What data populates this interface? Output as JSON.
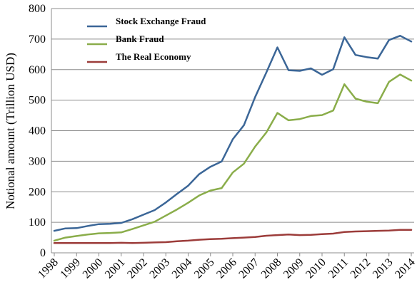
{
  "chart_data": {
    "type": "line",
    "title": "",
    "xlabel": "",
    "ylabel": "Notional amount (Trillion USD)",
    "ylim": [
      0,
      800
    ],
    "yticks": [
      0,
      100,
      200,
      300,
      400,
      500,
      600,
      700,
      800
    ],
    "xlim": [
      1998,
      2014
    ],
    "xticks": [
      1998,
      1999,
      2000,
      2001,
      2002,
      2003,
      2004,
      2005,
      2006,
      2007,
      2008,
      2009,
      2010,
      2011,
      2012,
      2013,
      2014
    ],
    "grid": true,
    "legend_position": "top-left",
    "x": [
      1998,
      1998.5,
      1999,
      1999.5,
      2000,
      2000.5,
      2001,
      2001.5,
      2002,
      2002.5,
      2003,
      2003.5,
      2004,
      2004.5,
      2005,
      2005.5,
      2006,
      2006.5,
      2007,
      2007.5,
      2008,
      2008.5,
      2009,
      2009.5,
      2010,
      2010.5,
      2011,
      2011.5,
      2012,
      2012.5,
      2013,
      2013.5,
      2014
    ],
    "series": [
      {
        "name": "Stock Exchange Fraud",
        "color": "#3b6697",
        "values": [
          72,
          80,
          81,
          88,
          94,
          95,
          98,
          110,
          125,
          140,
          165,
          193,
          220,
          258,
          282,
          299,
          372,
          418,
          510,
          590,
          673,
          598,
          596,
          604,
          583,
          601,
          706,
          648,
          641,
          636,
          697,
          711,
          692
        ]
      },
      {
        "name": "Bank Fraud",
        "color": "#8aad4a",
        "values": [
          40,
          50,
          55,
          60,
          64,
          65,
          67,
          78,
          90,
          102,
          122,
          142,
          164,
          188,
          204,
          212,
          263,
          292,
          348,
          394,
          458,
          434,
          438,
          448,
          451,
          466,
          552,
          505,
          495,
          490,
          560,
          584,
          564
        ]
      },
      {
        "name": "The Real Economy",
        "color": "#9c3c3a",
        "values": [
          32,
          32,
          32,
          32,
          32,
          32,
          33,
          32,
          33,
          34,
          35,
          38,
          40,
          43,
          45,
          46,
          48,
          50,
          52,
          56,
          58,
          60,
          58,
          59,
          61,
          63,
          68,
          70,
          71,
          72,
          73,
          75,
          75
        ]
      }
    ]
  }
}
